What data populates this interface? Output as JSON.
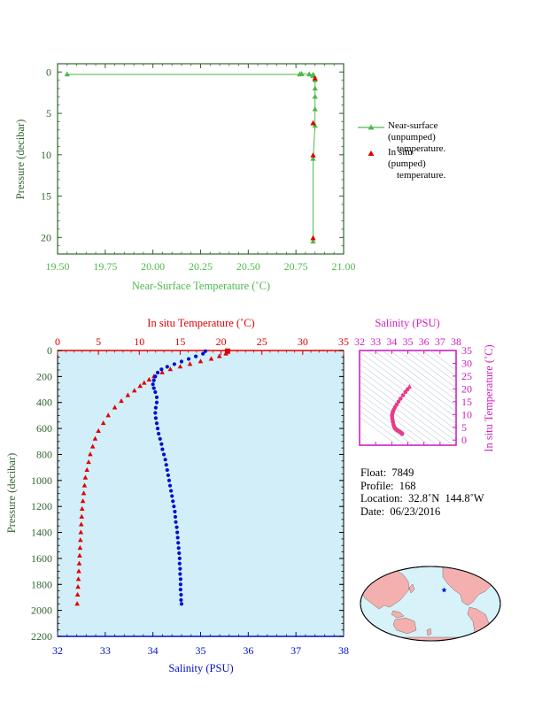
{
  "colors": {
    "green": "#4cbb4c",
    "red": "#e00000",
    "blue": "#0010d0",
    "magenta": "#d020c0",
    "pink": "#e83a8a",
    "plot_bg": "#d2eef8",
    "axis_dark": "#000000",
    "ocean": "#d8f2fa",
    "land": "#f4b0ae"
  },
  "top_chart": {
    "xlabel": "Near-Surface Temperature (˚C)",
    "ylabel": "Pressure (decibar)",
    "xticks": [
      "19.50",
      "19.75",
      "20.00",
      "20.25",
      "20.50",
      "20.75",
      "21.00"
    ],
    "yticks": [
      "0",
      "5",
      "10",
      "15",
      "20"
    ],
    "legend": {
      "nearsurface_line1": "Near-surface (unpumped)",
      "nearsurface_line2": "temperature.",
      "insitu_line1": "In situ (pumped)",
      "insitu_line2": "temperature."
    }
  },
  "bottom_chart": {
    "top_xlabel": "In situ Temperature (˚C)",
    "bottom_xlabel": "Salinity (PSU)",
    "ylabel": "Pressure (decibar)",
    "temp_ticks": [
      "0",
      "5",
      "10",
      "15",
      "20",
      "25",
      "30",
      "35"
    ],
    "sal_ticks": [
      "32",
      "33",
      "34",
      "35",
      "36",
      "37",
      "38"
    ],
    "pres_ticks": [
      "0",
      "200",
      "400",
      "600",
      "800",
      "1000",
      "1200",
      "1400",
      "1600",
      "1800",
      "2000",
      "2200"
    ]
  },
  "ts_chart": {
    "title": "Salinity (PSU)",
    "ylabel": "In situ Temperature (˚C)",
    "xticks": [
      "32",
      "33",
      "34",
      "35",
      "36",
      "37",
      "38"
    ],
    "yticks": [
      "0",
      "5",
      "10",
      "15",
      "20",
      "25",
      "30",
      "35"
    ]
  },
  "info": {
    "float_label": "Float:",
    "float_value": "7849",
    "profile_label": "Profile:",
    "profile_value": "168",
    "location_label": "Location:",
    "location_value": "32.8˚N  144.8˚W",
    "date_label": "Date:",
    "date_value": "06/23/2016"
  },
  "chart_data": [
    {
      "type": "line",
      "name": "near-surface-temperature",
      "xlabel": "Near-Surface Temperature (˚C)",
      "ylabel": "Pressure (decibar)",
      "xlim": [
        19.5,
        21.0
      ],
      "ylim": [
        22,
        -1
      ],
      "series": [
        {
          "name": "Near-surface (unpumped) temperature.",
          "marker": "triangle",
          "points": [
            [
              19.55,
              0.3
            ],
            [
              20.77,
              0.3
            ],
            [
              20.78,
              0.25
            ],
            [
              20.82,
              0.3
            ],
            [
              20.84,
              0.35
            ],
            [
              20.84,
              0.4
            ],
            [
              20.84,
              0.5
            ],
            [
              20.845,
              0.5
            ],
            [
              20.85,
              1.0
            ],
            [
              20.85,
              2.0
            ],
            [
              20.85,
              3.0
            ],
            [
              20.85,
              4.5
            ],
            [
              20.85,
              6.5
            ],
            [
              20.84,
              10.5
            ],
            [
              20.84,
              20.5
            ]
          ]
        },
        {
          "name": "In situ (pumped) temperature.",
          "marker": "triangle",
          "points": [
            [
              20.85,
              0.8
            ],
            [
              20.84,
              6.2
            ],
            [
              20.84,
              10.1
            ],
            [
              20.84,
              20.1
            ]
          ]
        }
      ]
    },
    {
      "type": "scatter",
      "name": "profile",
      "xlabel": "Salinity (PSU)",
      "x2label": "In situ Temperature (˚C)",
      "ylabel": "Pressure (decibar)",
      "sal_lim": [
        32,
        38
      ],
      "temp_lim": [
        0,
        35
      ],
      "ylim": [
        2200,
        0
      ],
      "series": [
        {
          "name": "In situ Temperature",
          "axis": "temperature",
          "marker": "triangle",
          "points": [
            [
              20.8,
              5
            ],
            [
              20.6,
              25
            ],
            [
              19.8,
              45
            ],
            [
              18.8,
              65
            ],
            [
              17.5,
              85
            ],
            [
              16.2,
              105
            ],
            [
              15.0,
              125
            ],
            [
              13.8,
              145
            ],
            [
              12.8,
              170
            ],
            [
              11.8,
              200
            ],
            [
              11.2,
              225
            ],
            [
              10.6,
              250
            ],
            [
              10.1,
              275
            ],
            [
              9.4,
              310
            ],
            [
              8.6,
              345
            ],
            [
              7.8,
              390
            ],
            [
              7.0,
              440
            ],
            [
              6.2,
              500
            ],
            [
              5.6,
              560
            ],
            [
              5.0,
              620
            ],
            [
              4.6,
              680
            ],
            [
              4.3,
              740
            ],
            [
              4.0,
              800
            ],
            [
              3.8,
              860
            ],
            [
              3.6,
              920
            ],
            [
              3.4,
              980
            ],
            [
              3.3,
              1040
            ],
            [
              3.2,
              1100
            ],
            [
              3.1,
              1160
            ],
            [
              3.0,
              1220
            ],
            [
              2.95,
              1280
            ],
            [
              2.9,
              1340
            ],
            [
              2.85,
              1400
            ],
            [
              2.8,
              1460
            ],
            [
              2.75,
              1520
            ],
            [
              2.7,
              1580
            ],
            [
              2.65,
              1640
            ],
            [
              2.6,
              1700
            ],
            [
              2.55,
              1760
            ],
            [
              2.5,
              1820
            ],
            [
              2.45,
              1880
            ],
            [
              2.4,
              1950
            ]
          ]
        },
        {
          "name": "Salinity",
          "axis": "salinity",
          "marker": "dot",
          "points": [
            [
              35.1,
              5
            ],
            [
              35.05,
              25
            ],
            [
              34.9,
              45
            ],
            [
              34.75,
              65
            ],
            [
              34.6,
              85
            ],
            [
              34.45,
              105
            ],
            [
              34.3,
              125
            ],
            [
              34.18,
              145
            ],
            [
              34.1,
              170
            ],
            [
              34.05,
              200
            ],
            [
              34.02,
              230
            ],
            [
              34.0,
              260
            ],
            [
              34.02,
              290
            ],
            [
              34.05,
              320
            ],
            [
              34.08,
              360
            ],
            [
              34.08,
              400
            ],
            [
              34.06,
              440
            ],
            [
              34.05,
              480
            ],
            [
              34.06,
              520
            ],
            [
              34.08,
              560
            ],
            [
              34.1,
              600
            ],
            [
              34.12,
              640
            ],
            [
              34.15,
              680
            ],
            [
              34.18,
              720
            ],
            [
              34.2,
              760
            ],
            [
              34.23,
              800
            ],
            [
              34.26,
              840
            ],
            [
              34.28,
              880
            ],
            [
              34.3,
              920
            ],
            [
              34.32,
              960
            ],
            [
              34.34,
              1000
            ],
            [
              34.36,
              1040
            ],
            [
              34.38,
              1080
            ],
            [
              34.4,
              1120
            ],
            [
              34.42,
              1160
            ],
            [
              34.44,
              1200
            ],
            [
              34.46,
              1240
            ],
            [
              34.47,
              1280
            ],
            [
              34.48,
              1320
            ],
            [
              34.5,
              1360
            ],
            [
              34.51,
              1400
            ],
            [
              34.52,
              1440
            ],
            [
              34.53,
              1480
            ],
            [
              34.54,
              1520
            ],
            [
              34.55,
              1560
            ],
            [
              34.56,
              1600
            ],
            [
              34.56,
              1640
            ],
            [
              34.57,
              1680
            ],
            [
              34.57,
              1720
            ],
            [
              34.58,
              1760
            ],
            [
              34.58,
              1800
            ],
            [
              34.58,
              1840
            ],
            [
              34.59,
              1880
            ],
            [
              34.59,
              1920
            ],
            [
              34.6,
              1950
            ]
          ]
        }
      ]
    },
    {
      "type": "scatter",
      "name": "temperature-salinity",
      "xlabel": "Salinity (PSU)",
      "ylabel": "In situ Temperature (˚C)",
      "xlim": [
        32,
        38
      ],
      "ylim": [
        -2,
        35
      ],
      "series": [
        {
          "name": "T-S",
          "marker": "dot",
          "points": [
            [
              35.1,
              20.8
            ],
            [
              34.98,
              19.8
            ],
            [
              34.85,
              18.8
            ],
            [
              34.7,
              17.5
            ],
            [
              34.55,
              16.2
            ],
            [
              34.42,
              15.0
            ],
            [
              34.3,
              13.8
            ],
            [
              34.2,
              12.8
            ],
            [
              34.12,
              11.8
            ],
            [
              34.08,
              11.2
            ],
            [
              34.05,
              10.6
            ],
            [
              34.03,
              10.1
            ],
            [
              34.02,
              9.4
            ],
            [
              34.03,
              8.6
            ],
            [
              34.05,
              7.8
            ],
            [
              34.08,
              7.0
            ],
            [
              34.1,
              6.2
            ],
            [
              34.13,
              5.6
            ],
            [
              34.16,
              5.0
            ],
            [
              34.2,
              4.6
            ],
            [
              34.25,
              4.3
            ],
            [
              34.3,
              4.0
            ],
            [
              34.35,
              3.8
            ],
            [
              34.4,
              3.6
            ],
            [
              34.45,
              3.4
            ],
            [
              34.5,
              3.2
            ],
            [
              34.55,
              3.0
            ],
            [
              34.6,
              2.8
            ],
            [
              34.62,
              2.6
            ],
            [
              34.65,
              2.4
            ]
          ]
        }
      ]
    },
    {
      "type": "map",
      "name": "location-map",
      "marker": {
        "lat": 32.8,
        "lon": -144.8
      }
    }
  ]
}
